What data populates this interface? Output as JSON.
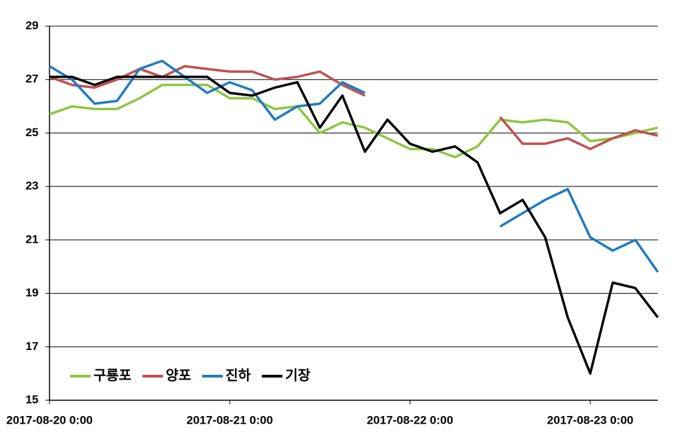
{
  "chart_data": {
    "type": "line",
    "x": [
      "2017-08-20 0:00",
      "2017-08-20 3:00",
      "2017-08-20 6:00",
      "2017-08-20 9:00",
      "2017-08-20 12:00",
      "2017-08-20 15:00",
      "2017-08-20 18:00",
      "2017-08-20 21:00",
      "2017-08-21 0:00",
      "2017-08-21 3:00",
      "2017-08-21 6:00",
      "2017-08-21 9:00",
      "2017-08-21 12:00",
      "2017-08-21 15:00",
      "2017-08-21 18:00",
      "2017-08-21 21:00",
      "2017-08-22 0:00",
      "2017-08-22 3:00",
      "2017-08-22 6:00",
      "2017-08-22 9:00",
      "2017-08-22 12:00",
      "2017-08-22 15:00",
      "2017-08-22 18:00",
      "2017-08-22 21:00",
      "2017-08-23 0:00",
      "2017-08-23 3:00",
      "2017-08-23 6:00",
      "2017-08-23 9:00"
    ],
    "series": [
      {
        "name": "구룡포",
        "color": "#8dc63f",
        "values": [
          25.7,
          26.0,
          25.9,
          25.9,
          26.3,
          26.8,
          26.8,
          26.8,
          26.3,
          26.3,
          25.9,
          26.0,
          25.0,
          25.4,
          25.2,
          24.8,
          24.4,
          24.4,
          24.1,
          24.5,
          25.5,
          25.4,
          25.5,
          25.4,
          24.7,
          24.8,
          25.0,
          25.2
        ]
      },
      {
        "name": "양포",
        "color": "#c0504d",
        "values": [
          27.1,
          26.8,
          26.7,
          27.0,
          27.4,
          27.1,
          27.5,
          27.4,
          27.3,
          27.3,
          27.0,
          27.1,
          27.3,
          26.8,
          26.4,
          null,
          null,
          null,
          null,
          null,
          25.6,
          24.6,
          24.6,
          24.8,
          24.4,
          24.8,
          25.1,
          24.9
        ]
      },
      {
        "name": "진하",
        "color": "#1f7ac3",
        "values": [
          27.5,
          27.0,
          26.1,
          26.2,
          27.4,
          27.7,
          27.1,
          26.5,
          26.9,
          26.6,
          25.5,
          26.0,
          26.1,
          26.9,
          26.5,
          null,
          null,
          null,
          null,
          null,
          21.5,
          22.0,
          22.5,
          22.9,
          21.1,
          20.6,
          21.0,
          19.8
        ]
      },
      {
        "name": "기장",
        "color": "#000000",
        "values": [
          27.1,
          27.1,
          26.8,
          27.1,
          27.1,
          27.1,
          27.1,
          27.1,
          26.5,
          26.4,
          26.7,
          26.9,
          25.2,
          26.4,
          24.3,
          25.5,
          24.6,
          24.3,
          24.5,
          23.9,
          22.0,
          22.5,
          21.1,
          18.1,
          16.0,
          19.4,
          19.2,
          18.1
        ]
      }
    ],
    "xlim": [
      "2017-08-20 0:00",
      "2017-08-23 9:00"
    ],
    "xticks": [
      "2017-08-20 0:00",
      "2017-08-21 0:00",
      "2017-08-22 0:00",
      "2017-08-23 0:00"
    ],
    "ylim": [
      15,
      29
    ],
    "yticks": [
      15,
      17,
      19,
      21,
      23,
      25,
      27,
      29
    ],
    "grid": true,
    "legend": "lower left"
  }
}
